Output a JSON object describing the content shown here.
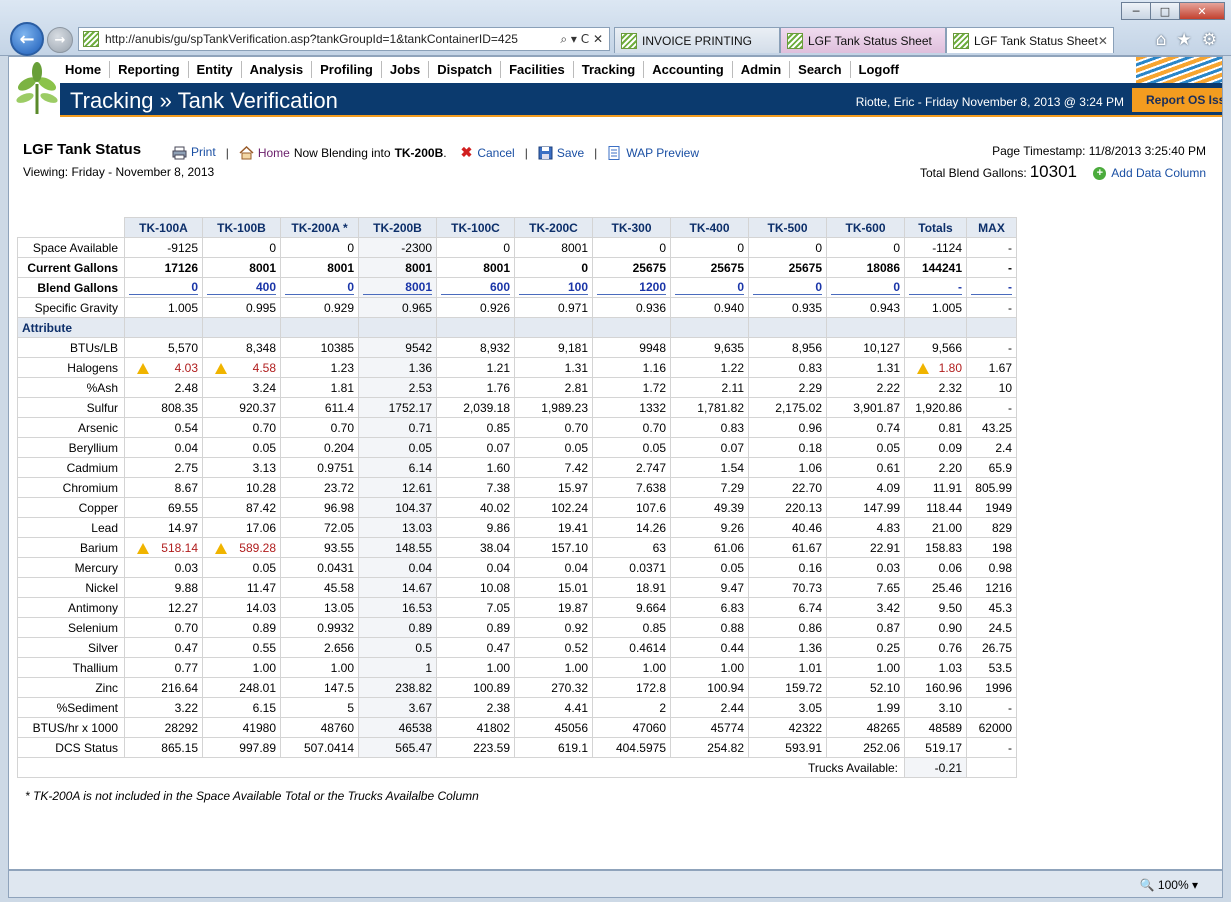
{
  "browser": {
    "url": "http://anubis/gu/spTankVerification.asp?tankGroupId=1&tankContainerID=425",
    "url_actions": "⌕ ▾ C ✕",
    "tabs": [
      {
        "title": "INVOICE PRINTING"
      },
      {
        "title": "LGF Tank Status Sheet"
      },
      {
        "title": "LGF Tank Status Sheet",
        "close": "✕"
      }
    ],
    "zoom": "100%"
  },
  "nav": [
    "Home",
    "Reporting",
    "Entity",
    "Analysis",
    "Profiling",
    "Jobs",
    "Dispatch",
    "Facilities",
    "Tracking",
    "Accounting",
    "Admin",
    "Search",
    "Logoff"
  ],
  "header": {
    "title": "Tracking » Tank Verification",
    "user_line": "Riotte, Eric - Friday November 8, 2013 @ 3:24 PM",
    "report_button": "Report OS Issue"
  },
  "toolbar": {
    "title": "LGF Tank Status",
    "viewing": "Viewing: Friday - November 8, 2013",
    "print": "Print",
    "home": "Home",
    "blending_prefix": "Now Blending into",
    "blending_tank": "TK-200B",
    "cancel": "Cancel",
    "save": "Save",
    "wap_preview": "WAP Preview",
    "timestamp": "Page Timestamp: 11/8/2013 3:25:40 PM",
    "total_blend_label": "Total Blend Gallons:",
    "total_blend_value": "10301",
    "add_data_column": "Add Data Column"
  },
  "table": {
    "columns": [
      "TK-100A",
      "TK-100B",
      "TK-200A *",
      "TK-200B",
      "TK-100C",
      "TK-200C",
      "TK-300",
      "TK-400",
      "TK-500",
      "TK-600",
      "Totals",
      "MAX"
    ],
    "top_rows": [
      {
        "label": "Space Available",
        "values": [
          "-9125",
          "0",
          "0",
          "-2300",
          "0",
          "8001",
          "0",
          "0",
          "0",
          "0",
          "-1124",
          "-"
        ]
      },
      {
        "label": "Current Gallons",
        "bold": true,
        "values": [
          "17126",
          "8001",
          "8001",
          "8001",
          "8001",
          "0",
          "25675",
          "25675",
          "25675",
          "18086",
          "144241",
          "-"
        ]
      },
      {
        "label": "Blend Gallons",
        "blend": true,
        "values": [
          "0",
          "400",
          "0",
          "8001",
          "600",
          "100",
          "1200",
          "0",
          "0",
          "0",
          "-",
          "-"
        ]
      },
      {
        "label": "Specific Gravity",
        "values": [
          "1.005",
          "0.995",
          "0.929",
          "0.965",
          "0.926",
          "0.971",
          "0.936",
          "0.940",
          "0.935",
          "0.943",
          "1.005",
          "-"
        ]
      }
    ],
    "attribute_header": "Attribute",
    "attr_rows": [
      {
        "label": "BTUs/LB",
        "values": [
          "5,570",
          "8,348",
          "10385",
          "9542",
          "8,932",
          "9,181",
          "9948",
          "9,635",
          "8,956",
          "10,127",
          "9,566",
          "-"
        ]
      },
      {
        "label": "Halogens",
        "warn": [
          0,
          1,
          10
        ],
        "values": [
          "4.03",
          "4.58",
          "1.23",
          "1.36",
          "1.21",
          "1.31",
          "1.16",
          "1.22",
          "0.83",
          "1.31",
          "1.80",
          "1.67"
        ]
      },
      {
        "label": "%Ash",
        "values": [
          "2.48",
          "3.24",
          "1.81",
          "2.53",
          "1.76",
          "2.81",
          "1.72",
          "2.11",
          "2.29",
          "2.22",
          "2.32",
          "10"
        ]
      },
      {
        "label": "Sulfur",
        "values": [
          "808.35",
          "920.37",
          "611.4",
          "1752.17",
          "2,039.18",
          "1,989.23",
          "1332",
          "1,781.82",
          "2,175.02",
          "3,901.87",
          "1,920.86",
          "-"
        ]
      },
      {
        "label": "Arsenic",
        "values": [
          "0.54",
          "0.70",
          "0.70",
          "0.71",
          "0.85",
          "0.70",
          "0.70",
          "0.83",
          "0.96",
          "0.74",
          "0.81",
          "43.25"
        ]
      },
      {
        "label": "Beryllium",
        "values": [
          "0.04",
          "0.05",
          "0.204",
          "0.05",
          "0.07",
          "0.05",
          "0.05",
          "0.07",
          "0.18",
          "0.05",
          "0.09",
          "2.4"
        ]
      },
      {
        "label": "Cadmium",
        "values": [
          "2.75",
          "3.13",
          "0.9751",
          "6.14",
          "1.60",
          "7.42",
          "2.747",
          "1.54",
          "1.06",
          "0.61",
          "2.20",
          "65.9"
        ]
      },
      {
        "label": "Chromium",
        "values": [
          "8.67",
          "10.28",
          "23.72",
          "12.61",
          "7.38",
          "15.97",
          "7.638",
          "7.29",
          "22.70",
          "4.09",
          "11.91",
          "805.99"
        ]
      },
      {
        "label": "Copper",
        "values": [
          "69.55",
          "87.42",
          "96.98",
          "104.37",
          "40.02",
          "102.24",
          "107.6",
          "49.39",
          "220.13",
          "147.99",
          "118.44",
          "1949"
        ]
      },
      {
        "label": "Lead",
        "values": [
          "14.97",
          "17.06",
          "72.05",
          "13.03",
          "9.86",
          "19.41",
          "14.26",
          "9.26",
          "40.46",
          "4.83",
          "21.00",
          "829"
        ]
      },
      {
        "label": "Barium",
        "warn": [
          0,
          1
        ],
        "values": [
          "518.14",
          "589.28",
          "93.55",
          "148.55",
          "38.04",
          "157.10",
          "63",
          "61.06",
          "61.67",
          "22.91",
          "158.83",
          "198"
        ]
      },
      {
        "label": "Mercury",
        "values": [
          "0.03",
          "0.05",
          "0.0431",
          "0.04",
          "0.04",
          "0.04",
          "0.0371",
          "0.05",
          "0.16",
          "0.03",
          "0.06",
          "0.98"
        ]
      },
      {
        "label": "Nickel",
        "values": [
          "9.88",
          "11.47",
          "45.58",
          "14.67",
          "10.08",
          "15.01",
          "18.91",
          "9.47",
          "70.73",
          "7.65",
          "25.46",
          "1216"
        ]
      },
      {
        "label": "Antimony",
        "values": [
          "12.27",
          "14.03",
          "13.05",
          "16.53",
          "7.05",
          "19.87",
          "9.664",
          "6.83",
          "6.74",
          "3.42",
          "9.50",
          "45.3"
        ]
      },
      {
        "label": "Selenium",
        "values": [
          "0.70",
          "0.89",
          "0.9932",
          "0.89",
          "0.89",
          "0.92",
          "0.85",
          "0.88",
          "0.86",
          "0.87",
          "0.90",
          "24.5"
        ]
      },
      {
        "label": "Silver",
        "values": [
          "0.47",
          "0.55",
          "2.656",
          "0.5",
          "0.47",
          "0.52",
          "0.4614",
          "0.44",
          "1.36",
          "0.25",
          "0.76",
          "26.75"
        ]
      },
      {
        "label": "Thallium",
        "values": [
          "0.77",
          "1.00",
          "1.00",
          "1",
          "1.00",
          "1.00",
          "1.00",
          "1.00",
          "1.01",
          "1.00",
          "1.03",
          "53.5"
        ]
      },
      {
        "label": "Zinc",
        "values": [
          "216.64",
          "248.01",
          "147.5",
          "238.82",
          "100.89",
          "270.32",
          "172.8",
          "100.94",
          "159.72",
          "52.10",
          "160.96",
          "1996"
        ]
      },
      {
        "label": "%Sediment",
        "values": [
          "3.22",
          "6.15",
          "5",
          "3.67",
          "2.38",
          "4.41",
          "2",
          "2.44",
          "3.05",
          "1.99",
          "3.10",
          "-"
        ]
      },
      {
        "label": "BTUS/hr x 1000",
        "values": [
          "28292",
          "41980",
          "48760",
          "46538",
          "41802",
          "45056",
          "47060",
          "45774",
          "42322",
          "48265",
          "48589",
          "62000"
        ]
      },
      {
        "label": "DCS Status",
        "values": [
          "865.15",
          "997.89",
          "507.0414",
          "565.47",
          "223.59",
          "619.1",
          "404.5975",
          "254.82",
          "593.91",
          "252.06",
          "519.17",
          "-"
        ]
      }
    ],
    "trucks_label": "Trucks Available:",
    "trucks_value": "-0.21"
  },
  "footnote": "* TK-200A is not included in the Space Available Total or the Trucks Availalbe Column",
  "colors": {
    "header_bg": "#0b3a6e",
    "accent": "#f39c1f",
    "link": "#1a4fa3",
    "warning": "#b01d1d"
  }
}
